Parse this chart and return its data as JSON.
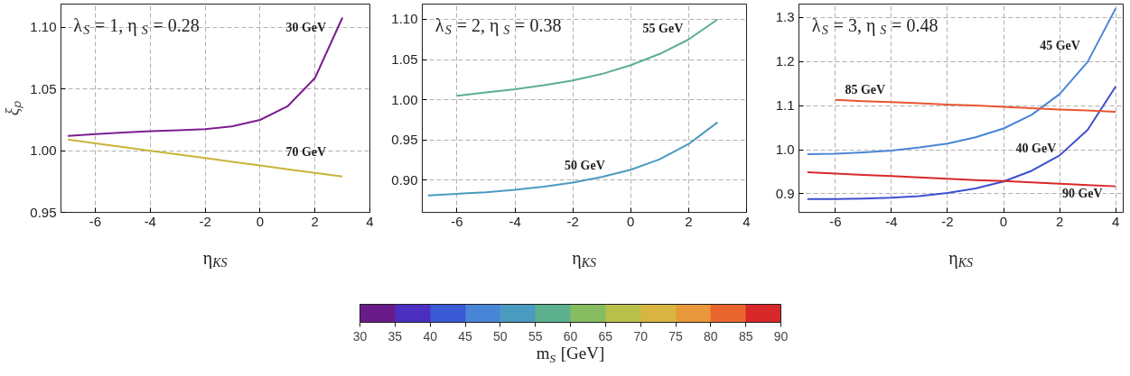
{
  "chart_data": [
    {
      "type": "line",
      "xlabel": "η$_{KS}$",
      "ylabel": "ξₚ",
      "xlim": [
        -7.25,
        4
      ],
      "ylim": [
        0.95,
        1.119
      ],
      "xticks": [
        -6,
        -4,
        -2,
        0,
        2,
        4
      ],
      "yticks": [
        {
          "value": 0.95,
          "label": "0.95"
        },
        {
          "value": 1.0,
          "label": "1.00"
        },
        {
          "value": 1.05,
          "label": "1.05"
        },
        {
          "value": 1.1,
          "label": "1.10"
        }
      ],
      "grid": true,
      "x": [
        -7,
        -6,
        -5,
        -4,
        -3,
        -2,
        -1,
        0,
        1,
        2,
        3
      ],
      "series": [
        {
          "color": "#7b1f8e",
          "values": [
            1.012,
            1.0135,
            1.0148,
            1.0158,
            1.0165,
            1.0175,
            1.0198,
            1.025,
            1.036,
            1.059,
            1.108
          ]
        },
        {
          "color": "#c8b43a",
          "values": [
            1.009,
            1.006,
            1.003,
            1.0,
            0.997,
            0.994,
            0.991,
            0.988,
            0.985,
            0.982,
            0.979
          ]
        }
      ],
      "annotations": [
        "λ$_{S}$ = 1,  η$_{S}$ = 0.28",
        "30 GeV",
        "70 GeV"
      ]
    },
    {
      "type": "line",
      "xlabel": "η$_{KS}$",
      "xlim": [
        -7.2,
        4
      ],
      "ylim": [
        0.86,
        1.119
      ],
      "xticks": [
        -6,
        -4,
        -2,
        0,
        2,
        4
      ],
      "yticks": [
        {
          "value": 0.9,
          "label": "0.90"
        },
        {
          "value": 0.95,
          "label": "0.95"
        },
        {
          "value": 1.0,
          "label": "1.00"
        },
        {
          "value": 1.05,
          "label": "1.05"
        },
        {
          "value": 1.1,
          "label": "1.10"
        }
      ],
      "grid": true,
      "x": [
        -7,
        -6,
        -5,
        -4,
        -3,
        -2,
        -1,
        0,
        1,
        2,
        3
      ],
      "series": [
        {
          "color": "#5cb08e",
          "values": [
            null,
            1.005,
            1.009,
            1.013,
            1.018,
            1.024,
            1.032,
            1.043,
            1.057,
            1.075,
            1.1
          ]
        },
        {
          "color": "#4a9bbf",
          "values": [
            0.881,
            0.883,
            0.885,
            0.888,
            0.892,
            0.897,
            0.904,
            0.913,
            0.926,
            0.945,
            0.972
          ]
        }
      ],
      "annotations": [
        "λ$_{S}$ = 2,  η$_{S}$ = 0.38",
        "55 GeV",
        "50 GeV"
      ],
      "clabel": "m$_{S}$ [GeV]",
      "clim": [
        30,
        90
      ],
      "cticks": [
        30,
        35,
        40,
        45,
        50,
        55,
        60,
        65,
        70,
        75,
        80,
        85,
        90
      ]
    },
    {
      "type": "line",
      "xlabel": "η$_{KS}$",
      "xlim": [
        -7.3,
        4.27
      ],
      "ylim": [
        0.858,
        1.33
      ],
      "xticks": [
        -6,
        -4,
        -2,
        0,
        2,
        4
      ],
      "yticks": [
        {
          "value": 0.9,
          "label": "0.9"
        },
        {
          "value": 1.0,
          "label": "1.0"
        },
        {
          "value": 1.1,
          "label": "1.1"
        },
        {
          "value": 1.2,
          "label": "1.2"
        },
        {
          "value": 1.3,
          "label": "1.3"
        }
      ],
      "grid": true,
      "x": [
        -7,
        -6,
        -5,
        -4,
        -3,
        -2,
        -1,
        0,
        1,
        2,
        3,
        4
      ],
      "series": [
        {
          "color": "#4a86d8",
          "values": [
            0.99,
            0.991,
            0.994,
            0.998,
            1.005,
            1.014,
            1.028,
            1.048,
            1.079,
            1.126,
            1.199,
            1.32
          ]
        },
        {
          "color": "#3d4fcf",
          "values": [
            0.888,
            0.888,
            0.889,
            0.891,
            0.895,
            0.902,
            0.912,
            0.928,
            0.952,
            0.987,
            1.045,
            1.143
          ]
        },
        {
          "color": "#e8562e",
          "values": [
            null,
            1.113,
            1.11,
            1.108,
            1.105,
            1.102,
            1.1,
            1.097,
            1.094,
            1.091,
            1.089,
            1.086
          ]
        },
        {
          "color": "#d9282a",
          "values": [
            0.949,
            0.946,
            0.943,
            0.94,
            0.937,
            0.934,
            0.931,
            0.929,
            0.926,
            0.923,
            0.92,
            0.917
          ]
        }
      ],
      "annotations": [
        "λ$_{S}$ = 3,  η$_{S}$ = 0.48",
        "45 GeV",
        "85 GeV",
        "40 GeV",
        "90 GeV"
      ]
    }
  ]
}
